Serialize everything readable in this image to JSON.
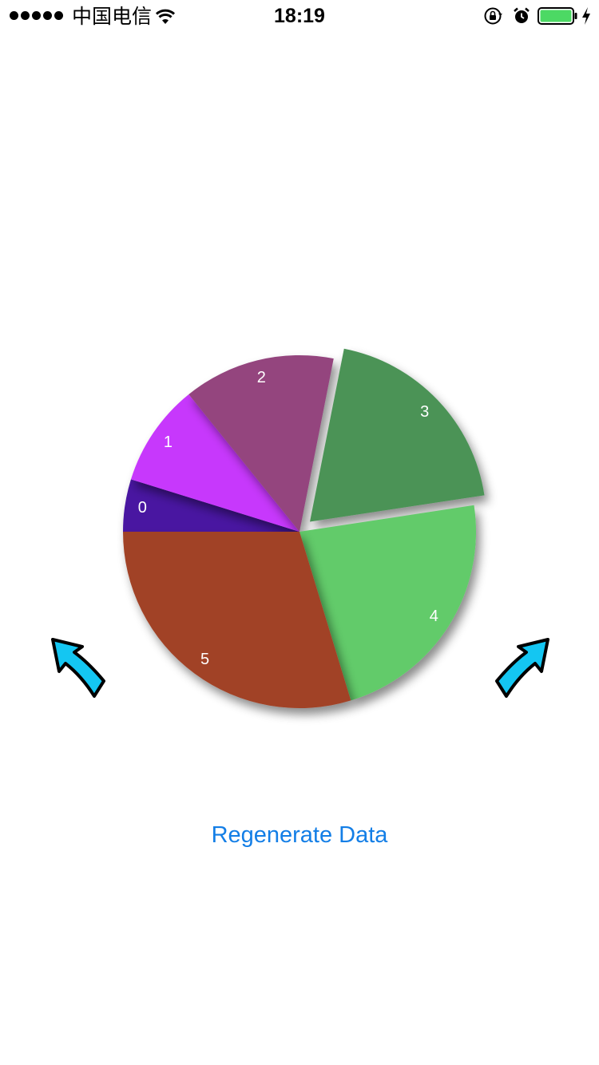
{
  "status_bar": {
    "carrier": "中国电信",
    "time": "18:19"
  },
  "chart_data": {
    "type": "pie",
    "labels": [
      "0",
      "1",
      "2",
      "3",
      "4",
      "5"
    ],
    "values": [
      4.8,
      9.4,
      13.9,
      19.5,
      22.7,
      29.7
    ],
    "colors": [
      "#4a13a1",
      "#c738fc",
      "#94447e",
      "#4b9357",
      "#62cb6b",
      "#a14327"
    ],
    "selected_index": 3
  },
  "actions": {
    "regenerate_label": "Regenerate Data"
  },
  "colors": {
    "accent": "#137ee6",
    "arrow_fill": "#14c6f2",
    "battery": "#4cd964"
  }
}
